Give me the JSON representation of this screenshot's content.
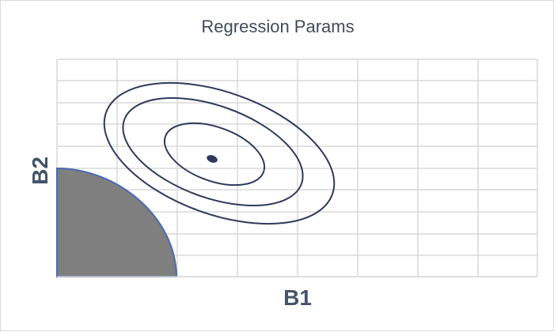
{
  "title": "Regression Params",
  "xlabel": "B1",
  "ylabel": "B2",
  "colors": {
    "grid": "#d9d9d9",
    "contour": "#2e3a5c",
    "constraint_fill": "#7f7f7f",
    "constraint_edge": "#4a6ab0",
    "title_text": "#404b5a",
    "axis_text": "#44546a"
  },
  "diagram": {
    "contour_rings": 3,
    "center_marker": "filled-ellipse",
    "constraint_region": "quarter-disc"
  }
}
